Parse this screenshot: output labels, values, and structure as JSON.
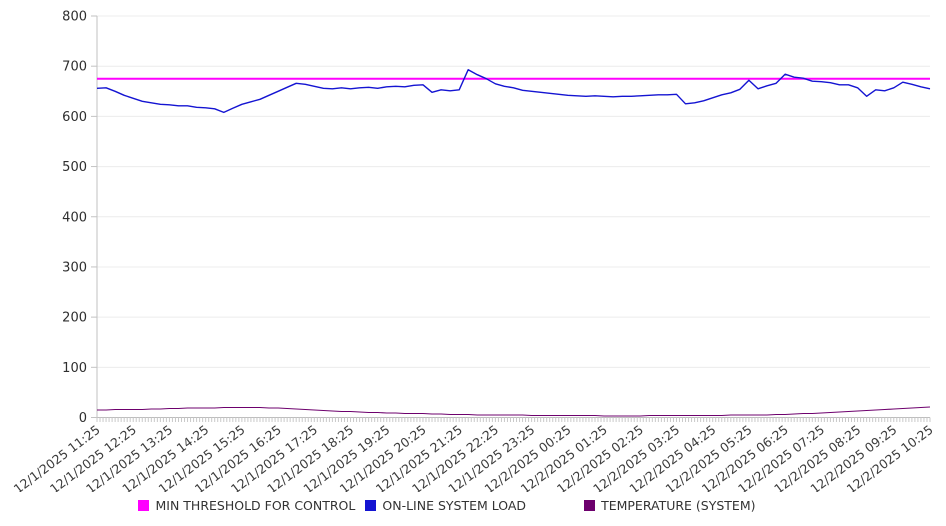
{
  "chart_data": {
    "type": "line",
    "title": "",
    "xlabel": "",
    "ylabel": "",
    "ylim": [
      0,
      800
    ],
    "yticks": [
      0,
      100,
      200,
      300,
      400,
      500,
      600,
      700,
      800
    ],
    "grid": "horizontal",
    "legend_position": "bottom-center",
    "hours_span": 23,
    "x_minor_ticks_per_hour": 12,
    "samples_per_hour": 4,
    "x_tick_labels": [
      "12/1/2025 11:25",
      "12/1/2025 12:25",
      "12/1/2025 13:25",
      "12/1/2025 14:25",
      "12/1/2025 15:25",
      "12/1/2025 16:25",
      "12/1/2025 17:25",
      "12/1/2025 18:25",
      "12/1/2025 19:25",
      "12/1/2025 20:25",
      "12/1/2025 21:25",
      "12/1/2025 22:25",
      "12/1/2025 23:25",
      "12/2/2025 00:25",
      "12/2/2025 01:25",
      "12/2/2025 02:25",
      "12/2/2025 03:25",
      "12/2/2025 04:25",
      "12/2/2025 05:25",
      "12/2/2025 06:25",
      "12/2/2025 07:25",
      "12/2/2025 08:25",
      "12/2/2025 09:25",
      "12/2/2025 10:25"
    ],
    "series": [
      {
        "name": "MIN THRESHOLD FOR CONTROL",
        "color": "#ff00ff",
        "kind": "threshold",
        "value": 675
      },
      {
        "name": "ON-LINE SYSTEM LOAD",
        "color": "#1414d2",
        "kind": "line",
        "values": [
          656,
          657,
          650,
          642,
          636,
          630,
          627,
          624,
          623,
          621,
          621,
          618,
          617,
          615,
          608,
          616,
          624,
          629,
          634,
          642,
          650,
          658,
          666,
          664,
          660,
          656,
          655,
          657,
          655,
          657,
          658,
          656,
          659,
          660,
          659,
          662,
          663,
          648,
          653,
          651,
          653,
          693,
          683,
          675,
          665,
          660,
          657,
          652,
          650,
          648,
          646,
          644,
          642,
          641,
          640,
          641,
          640,
          639,
          640,
          640,
          641,
          642,
          643,
          643,
          644,
          625,
          627,
          631,
          637,
          643,
          647,
          654,
          672,
          655,
          661,
          666,
          684,
          678,
          676,
          670,
          669,
          667,
          663,
          663,
          657,
          640,
          653,
          651,
          657,
          668,
          664,
          659,
          655
        ]
      },
      {
        "name": "TEMPERATURE (SYSTEM)",
        "color": "#6d006d",
        "kind": "line",
        "values": [
          15,
          15,
          16,
          16,
          16,
          16,
          17,
          17,
          18,
          18,
          19,
          19,
          19,
          19,
          20,
          20,
          20,
          20,
          20,
          19,
          19,
          18,
          17,
          16,
          15,
          14,
          13,
          12,
          12,
          11,
          10,
          10,
          9,
          9,
          8,
          8,
          8,
          7,
          7,
          6,
          6,
          6,
          5,
          5,
          5,
          5,
          5,
          5,
          4,
          4,
          4,
          4,
          4,
          4,
          4,
          4,
          3,
          3,
          3,
          3,
          3,
          4,
          4,
          4,
          4,
          4,
          4,
          4,
          4,
          4,
          5,
          5,
          5,
          5,
          5,
          6,
          6,
          7,
          8,
          8,
          9,
          10,
          11,
          12,
          13,
          14,
          15,
          16,
          17,
          18,
          19,
          20,
          21
        ]
      }
    ]
  }
}
